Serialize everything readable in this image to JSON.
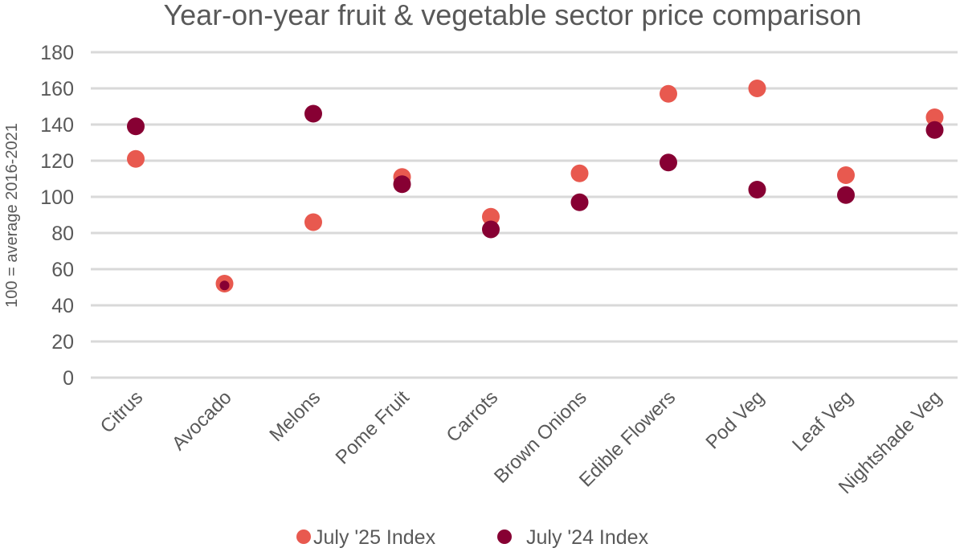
{
  "chart_data": {
    "type": "scatter",
    "title": "Year-on-year fruit & vegetable sector price comparison",
    "xlabel": "",
    "ylabel": "100 = average 2016-2021",
    "ylim": [
      0,
      180
    ],
    "yticks": [
      0,
      20,
      40,
      60,
      80,
      100,
      120,
      140,
      160,
      180
    ],
    "grid": true,
    "legend_position": "bottom",
    "categories": [
      "Citrus",
      "Avocado",
      "Melons",
      "Pome Fruit",
      "Carrots",
      "Brown Onions",
      "Edible Flowers",
      "Pod Veg",
      "Leaf Veg",
      "Nightshade Veg"
    ],
    "series": [
      {
        "name": "July '25 Index",
        "color": "#e8594f",
        "values": [
          121,
          52,
          86,
          111,
          89,
          113,
          157,
          160,
          112,
          144
        ]
      },
      {
        "name": "July '24 Index",
        "color": "#870033",
        "values": [
          139,
          51,
          146,
          107,
          82,
          97,
          119,
          104,
          101,
          137
        ]
      }
    ]
  }
}
